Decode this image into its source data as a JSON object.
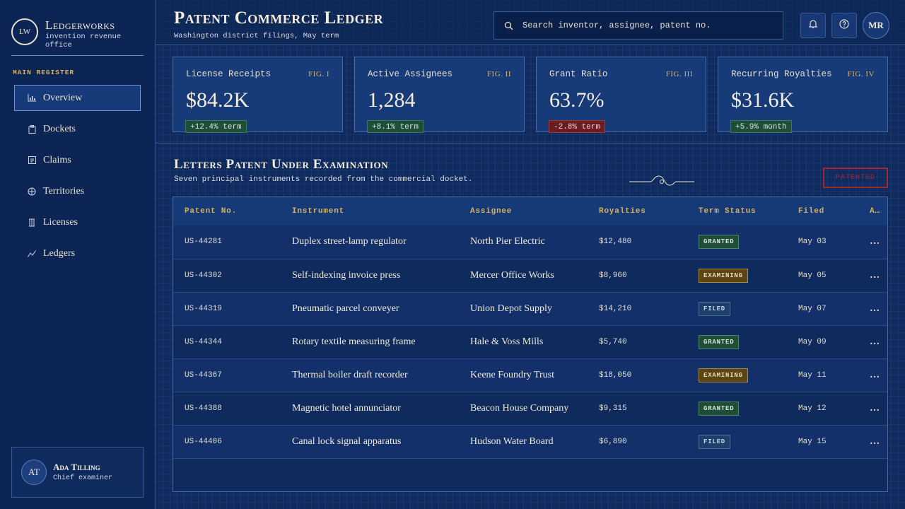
{
  "brand": {
    "logo": "LW",
    "name": "Ledgerworks",
    "subtitle": "invention revenue office"
  },
  "sidebar": {
    "section_label": "MAIN REGISTER",
    "items": [
      {
        "label": "Overview",
        "icon": "chart-bars-icon",
        "active": true
      },
      {
        "label": "Dockets",
        "icon": "clipboard-icon"
      },
      {
        "label": "Claims",
        "icon": "document-icon"
      },
      {
        "label": "Territories",
        "icon": "globe-icon"
      },
      {
        "label": "Licenses",
        "icon": "columns-icon"
      },
      {
        "label": "Ledgers",
        "icon": "trend-line-icon"
      }
    ]
  },
  "user": {
    "initials": "AT",
    "name": "Ada Tilling",
    "role": "Chief examiner"
  },
  "header": {
    "title": "Patent Commerce Ledger",
    "subtitle": "Washington district filings, May term",
    "search_placeholder": "Search inventor, assignee, patent no.",
    "avatar": "MR"
  },
  "stats": [
    {
      "label": "License Receipts",
      "fig": "FIG. I",
      "value": "$84.2K",
      "delta": "+12.4% term",
      "trend": "up"
    },
    {
      "label": "Active Assignees",
      "fig": "FIG. II",
      "value": "1,284",
      "delta": "+8.1% term",
      "trend": "up"
    },
    {
      "label": "Grant Ratio",
      "fig": "FIG. III",
      "value": "63.7%",
      "delta": "-2.8% term",
      "trend": "down"
    },
    {
      "label": "Recurring Royalties",
      "fig": "FIG. IV",
      "value": "$31.6K",
      "delta": "+5.9% month",
      "trend": "up"
    }
  ],
  "section": {
    "title": "Letters Patent Under Examination",
    "subtitle": "Seven principal instruments recorded from the commercial docket.",
    "stamp": "PATENTED"
  },
  "table": {
    "columns": [
      "Patent No.",
      "Instrument",
      "Assignee",
      "Royalties",
      "Term Status",
      "Filed",
      "A…"
    ],
    "rows": [
      {
        "patent": "US-44281",
        "instrument": "Duplex street-lamp regulator",
        "assignee": "North Pier Electric",
        "royalties": "$12,480",
        "status": "GRANTED",
        "filed": "May 03"
      },
      {
        "patent": "US-44302",
        "instrument": "Self-indexing invoice press",
        "assignee": "Mercer Office Works",
        "royalties": "$8,960",
        "status": "EXAMINING",
        "filed": "May 05"
      },
      {
        "patent": "US-44319",
        "instrument": "Pneumatic parcel conveyer",
        "assignee": "Union Depot Supply",
        "royalties": "$14,210",
        "status": "FILED",
        "filed": "May 07"
      },
      {
        "patent": "US-44344",
        "instrument": "Rotary textile measuring frame",
        "assignee": "Hale & Voss Mills",
        "royalties": "$5,740",
        "status": "GRANTED",
        "filed": "May 09"
      },
      {
        "patent": "US-44367",
        "instrument": "Thermal boiler draft recorder",
        "assignee": "Keene Foundry Trust",
        "royalties": "$18,050",
        "status": "EXAMINING",
        "filed": "May 11"
      },
      {
        "patent": "US-44388",
        "instrument": "Magnetic hotel annunciator",
        "assignee": "Beacon House Company",
        "royalties": "$9,315",
        "status": "GRANTED",
        "filed": "May 12"
      },
      {
        "patent": "US-44406",
        "instrument": "Canal lock signal apparatus",
        "assignee": "Hudson Water Board",
        "royalties": "$6,890",
        "status": "FILED",
        "filed": "May 15"
      }
    ],
    "row_action": "…"
  },
  "colors": {
    "gold": "#d6b25e",
    "navy": "#0f2a5c",
    "stamp_red": "#b5262c"
  }
}
